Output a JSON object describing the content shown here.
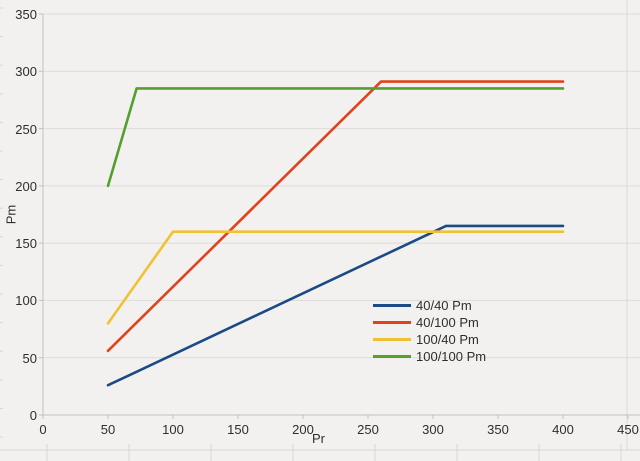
{
  "page": {
    "background": "#f2f1ef"
  },
  "colors": {
    "gridline": "#dcdbd9",
    "axis_line": "#c2c1bf",
    "sheet_border": "#d7d6d4",
    "text": "#2e2e2e"
  },
  "chart_data": {
    "type": "line",
    "title": "",
    "xlabel": "Pr",
    "ylabel": "Pm",
    "xlim": [
      0,
      450
    ],
    "ylim": [
      0,
      350
    ],
    "xticks": [
      0,
      50,
      100,
      150,
      200,
      250,
      300,
      350,
      400,
      450
    ],
    "yticks": [
      0,
      50,
      100,
      150,
      200,
      250,
      300,
      350
    ],
    "grid": "horizontal-only",
    "legend_position": "inside-center-right",
    "series": [
      {
        "name": "40/40 Pm",
        "color": "#1c4a87",
        "points": [
          [
            50,
            26
          ],
          [
            310,
            165
          ],
          [
            400,
            165
          ]
        ]
      },
      {
        "name": "40/100 Pm",
        "color": "#e0421e",
        "points": [
          [
            50,
            56
          ],
          [
            260,
            291
          ],
          [
            400,
            291
          ]
        ]
      },
      {
        "name": "100/40 Pm",
        "color": "#f0c233",
        "points": [
          [
            50,
            80
          ],
          [
            100,
            160
          ],
          [
            400,
            160
          ]
        ]
      },
      {
        "name": "100/100 Pm",
        "color": "#55a02c",
        "points": [
          [
            50,
            200
          ],
          [
            72,
            285
          ],
          [
            400,
            285
          ]
        ]
      }
    ]
  }
}
